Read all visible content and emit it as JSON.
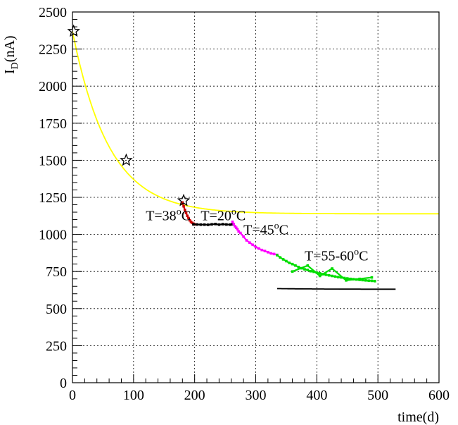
{
  "chart_data": {
    "type": "scatter",
    "xlabel": "time(d)",
    "ylabel": "I",
    "ylabel_sub": "D",
    "ylabel_unit": "(nA)",
    "xlim": [
      0,
      600
    ],
    "ylim": [
      0,
      2500
    ],
    "grid": true,
    "x_ticks": [
      0,
      100,
      200,
      300,
      400,
      500,
      600
    ],
    "y_ticks": [
      0,
      250,
      500,
      750,
      1000,
      1250,
      1500,
      1750,
      2000,
      2250,
      2500
    ],
    "annotations": [
      {
        "id": "t38",
        "prefix": "T=38",
        "sup": "o",
        "suffix": "C",
        "x": 120,
        "y": 1095
      },
      {
        "id": "t20",
        "prefix": "T=20",
        "sup": "o",
        "suffix": "C",
        "x": 210,
        "y": 1095
      },
      {
        "id": "t45",
        "prefix": "T=45",
        "sup": "o",
        "suffix": "C",
        "x": 280,
        "y": 1000
      },
      {
        "id": "t55",
        "prefix": "T=55-60",
        "sup": "o",
        "suffix": "C",
        "x": 380,
        "y": 825
      }
    ],
    "stars": [
      {
        "x": 2,
        "y": 2370
      },
      {
        "x": 88,
        "y": 1500
      },
      {
        "x": 182,
        "y": 1228
      }
    ],
    "fit_curves": [
      {
        "color": "#ffff00",
        "x_start": 0,
        "x_end": 600,
        "model": "exp",
        "a": 1139,
        "b": 1231,
        "tau": 60
      },
      {
        "color": "#000000",
        "x_start": 335,
        "x_end": 530,
        "model": "exp",
        "a": 630,
        "b": 240,
        "tau": 85
      }
    ],
    "series": [
      {
        "color": "#cc0000",
        "x": [
          180,
          182,
          184,
          186,
          188,
          190,
          192,
          194,
          196,
          198,
          200
        ],
        "y": [
          1215,
          1190,
          1165,
          1145,
          1125,
          1110,
          1095,
          1085,
          1078,
          1072,
          1068
        ]
      },
      {
        "color": "#000000",
        "x": [
          198,
          204,
          210,
          216,
          222,
          228,
          234,
          240,
          246,
          252,
          258,
          262
        ],
        "y": [
          1068,
          1067,
          1066,
          1066,
          1065,
          1068,
          1070,
          1066,
          1069,
          1067,
          1066,
          1068
        ]
      },
      {
        "color": "#ff00ff",
        "x": [
          262,
          264,
          266,
          268,
          270,
          272,
          275,
          280,
          285,
          290,
          295,
          300,
          305,
          310,
          315,
          320,
          325,
          330,
          335
        ],
        "y": [
          1085,
          1070,
          1055,
          1045,
          1035,
          1020,
          1010,
          985,
          960,
          945,
          930,
          915,
          905,
          895,
          888,
          880,
          872,
          868,
          862
        ]
      },
      {
        "color": "#00dd00",
        "x": [
          335,
          340,
          345,
          350,
          355,
          360,
          365,
          370,
          375,
          380,
          385,
          390,
          395,
          400,
          405,
          410,
          415,
          420,
          425,
          430,
          435,
          440,
          445,
          450,
          455,
          460,
          465,
          470,
          475,
          480,
          485,
          490,
          495
        ],
        "y": [
          860,
          845,
          832,
          820,
          808,
          800,
          790,
          780,
          772,
          765,
          760,
          752,
          748,
          742,
          738,
          732,
          728,
          724,
          720,
          716,
          712,
          710,
          706,
          703,
          700,
          698,
          696,
          694,
          692,
          690,
          688,
          687,
          685
        ]
      },
      {
        "color": "#00dd00",
        "x": [
          360,
          385,
          405,
          425,
          448,
          470,
          490
        ],
        "y": [
          750,
          790,
          720,
          770,
          690,
          700,
          710
        ]
      }
    ]
  }
}
